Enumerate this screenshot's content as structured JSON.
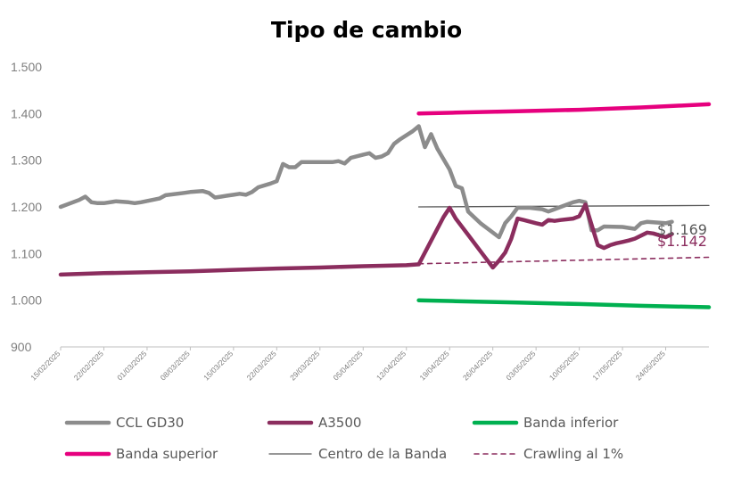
{
  "chart_data": {
    "type": "line",
    "title": "Tipo de cambio",
    "ylim": [
      900,
      1500
    ],
    "yticks": [
      "900",
      "1.000",
      "1.100",
      "1.200",
      "1.300",
      "1.400",
      "1.500"
    ],
    "ytick_values": [
      900,
      1000,
      1100,
      1200,
      1300,
      1400,
      1500
    ],
    "xlim": [
      "2025-02-15",
      "2025-05-31"
    ],
    "xtick_dates": [
      "2025-02-15",
      "2025-02-22",
      "2025-03-01",
      "2025-03-08",
      "2025-03-15",
      "2025-03-22",
      "2025-03-29",
      "2025-04-05",
      "2025-04-12",
      "2025-04-19",
      "2025-04-26",
      "2025-05-03",
      "2025-05-10",
      "2025-05-17",
      "2025-05-24"
    ],
    "xtick_labels": [
      "15/02/2025",
      "22/02/2025",
      "01/03/2025",
      "08/03/2025",
      "15/03/2025",
      "22/03/2025",
      "29/03/2025",
      "05/04/2025",
      "12/04/2025",
      "19/04/2025",
      "26/04/2025",
      "03/05/2025",
      "10/05/2025",
      "17/05/2025",
      "24/05/2025"
    ],
    "grid": false,
    "legend_position": "bottom",
    "series": [
      {
        "name": "CCL GD30",
        "color": "#8c8c8c",
        "style": "solid",
        "points": [
          [
            "2025-02-15",
            1200
          ],
          [
            "2025-02-18",
            1215
          ],
          [
            "2025-02-19",
            1222
          ],
          [
            "2025-02-20",
            1210
          ],
          [
            "2025-02-21",
            1208
          ],
          [
            "2025-02-22",
            1208
          ],
          [
            "2025-02-24",
            1212
          ],
          [
            "2025-02-26",
            1210
          ],
          [
            "2025-02-27",
            1208
          ],
          [
            "2025-02-28",
            1210
          ],
          [
            "2025-03-03",
            1218
          ],
          [
            "2025-03-04",
            1225
          ],
          [
            "2025-03-07",
            1230
          ],
          [
            "2025-03-08",
            1232
          ],
          [
            "2025-03-10",
            1234
          ],
          [
            "2025-03-11",
            1230
          ],
          [
            "2025-03-12",
            1220
          ],
          [
            "2025-03-13",
            1222
          ],
          [
            "2025-03-14",
            1224
          ],
          [
            "2025-03-15",
            1226
          ],
          [
            "2025-03-16",
            1228
          ],
          [
            "2025-03-17",
            1226
          ],
          [
            "2025-03-18",
            1232
          ],
          [
            "2025-03-19",
            1242
          ],
          [
            "2025-03-21",
            1250
          ],
          [
            "2025-03-22",
            1255
          ],
          [
            "2025-03-23",
            1292
          ],
          [
            "2025-03-24",
            1285
          ],
          [
            "2025-03-25",
            1285
          ],
          [
            "2025-03-26",
            1296
          ],
          [
            "2025-03-28",
            1296
          ],
          [
            "2025-03-31",
            1296
          ],
          [
            "2025-04-01",
            1298
          ],
          [
            "2025-04-02",
            1293
          ],
          [
            "2025-04-03",
            1305
          ],
          [
            "2025-04-05",
            1312
          ],
          [
            "2025-04-06",
            1315
          ],
          [
            "2025-04-07",
            1305
          ],
          [
            "2025-04-08",
            1308
          ],
          [
            "2025-04-09",
            1315
          ],
          [
            "2025-04-10",
            1335
          ],
          [
            "2025-04-11",
            1345
          ],
          [
            "2025-04-13",
            1362
          ],
          [
            "2025-04-14",
            1373
          ],
          [
            "2025-04-15",
            1328
          ],
          [
            "2025-04-16",
            1356
          ],
          [
            "2025-04-17",
            1325
          ],
          [
            "2025-04-19",
            1280
          ],
          [
            "2025-04-20",
            1245
          ],
          [
            "2025-04-21",
            1240
          ],
          [
            "2025-04-22",
            1190
          ],
          [
            "2025-04-24",
            1165
          ],
          [
            "2025-04-27",
            1135
          ],
          [
            "2025-04-28",
            1165
          ],
          [
            "2025-04-29",
            1180
          ],
          [
            "2025-04-30",
            1198
          ],
          [
            "2025-05-02",
            1198
          ],
          [
            "2025-05-04",
            1195
          ],
          [
            "2025-05-05",
            1190
          ],
          [
            "2025-05-06",
            1195
          ],
          [
            "2025-05-07",
            1200
          ],
          [
            "2025-05-08",
            1205
          ],
          [
            "2025-05-09",
            1210
          ],
          [
            "2025-05-10",
            1213
          ],
          [
            "2025-05-11",
            1210
          ],
          [
            "2025-05-12",
            1150
          ],
          [
            "2025-05-13",
            1150
          ],
          [
            "2025-05-14",
            1158
          ],
          [
            "2025-05-17",
            1157
          ],
          [
            "2025-05-19",
            1153
          ],
          [
            "2025-05-20",
            1165
          ],
          [
            "2025-05-21",
            1168
          ],
          [
            "2025-05-24",
            1165
          ],
          [
            "2025-05-25",
            1168
          ]
        ]
      },
      {
        "name": "A3500",
        "color": "#8b2d5e",
        "style": "solid",
        "points": [
          [
            "2025-02-15",
            1055
          ],
          [
            "2025-02-22",
            1058
          ],
          [
            "2025-03-01",
            1060
          ],
          [
            "2025-03-08",
            1062
          ],
          [
            "2025-03-15",
            1065
          ],
          [
            "2025-03-22",
            1068
          ],
          [
            "2025-03-29",
            1070
          ],
          [
            "2025-04-05",
            1073
          ],
          [
            "2025-04-12",
            1075
          ],
          [
            "2025-04-14",
            1077
          ],
          [
            "2025-04-18",
            1178
          ],
          [
            "2025-04-19",
            1198
          ],
          [
            "2025-04-20",
            1175
          ],
          [
            "2025-04-22",
            1140
          ],
          [
            "2025-04-24",
            1105
          ],
          [
            "2025-04-26",
            1070
          ],
          [
            "2025-04-27",
            1085
          ],
          [
            "2025-04-28",
            1102
          ],
          [
            "2025-04-29",
            1132
          ],
          [
            "2025-04-30",
            1175
          ],
          [
            "2025-05-01",
            1172
          ],
          [
            "2025-05-03",
            1165
          ],
          [
            "2025-05-04",
            1162
          ],
          [
            "2025-05-05",
            1172
          ],
          [
            "2025-05-06",
            1170
          ],
          [
            "2025-05-07",
            1172
          ],
          [
            "2025-05-09",
            1175
          ],
          [
            "2025-05-10",
            1180
          ],
          [
            "2025-05-11",
            1205
          ],
          [
            "2025-05-13",
            1118
          ],
          [
            "2025-05-14",
            1112
          ],
          [
            "2025-05-15",
            1118
          ],
          [
            "2025-05-16",
            1122
          ],
          [
            "2025-05-17",
            1125
          ],
          [
            "2025-05-18",
            1128
          ],
          [
            "2025-05-19",
            1132
          ],
          [
            "2025-05-21",
            1145
          ],
          [
            "2025-05-22",
            1143
          ],
          [
            "2025-05-24",
            1135
          ],
          [
            "2025-05-25",
            1142
          ]
        ]
      },
      {
        "name": "Banda inferior",
        "color": "#00b050",
        "style": "solid",
        "points": [
          [
            "2025-04-14",
            1000
          ],
          [
            "2025-04-20",
            998
          ],
          [
            "2025-04-30",
            995
          ],
          [
            "2025-05-10",
            992
          ],
          [
            "2025-05-20",
            988
          ],
          [
            "2025-05-31",
            985
          ]
        ]
      },
      {
        "name": "Banda superior",
        "color": "#e6007e",
        "style": "solid",
        "points": [
          [
            "2025-04-14",
            1400
          ],
          [
            "2025-04-20",
            1402
          ],
          [
            "2025-04-30",
            1405
          ],
          [
            "2025-05-10",
            1408
          ],
          [
            "2025-05-20",
            1413
          ],
          [
            "2025-05-31",
            1420
          ]
        ]
      },
      {
        "name": "Centro de la Banda",
        "color": "#595959",
        "style": "thin",
        "points": [
          [
            "2025-04-14",
            1200
          ],
          [
            "2025-05-31",
            1203
          ]
        ]
      },
      {
        "name": "Crawling al 1%",
        "color": "#8b2d5e",
        "style": "dashed",
        "points": [
          [
            "2025-04-14",
            1078
          ],
          [
            "2025-05-31",
            1092
          ]
        ]
      }
    ],
    "end_labels": [
      {
        "text": "$1.169",
        "value": 1169,
        "color": "#595959"
      },
      {
        "text": "$1.142",
        "value": 1142,
        "color": "#8b2d5e"
      }
    ]
  }
}
